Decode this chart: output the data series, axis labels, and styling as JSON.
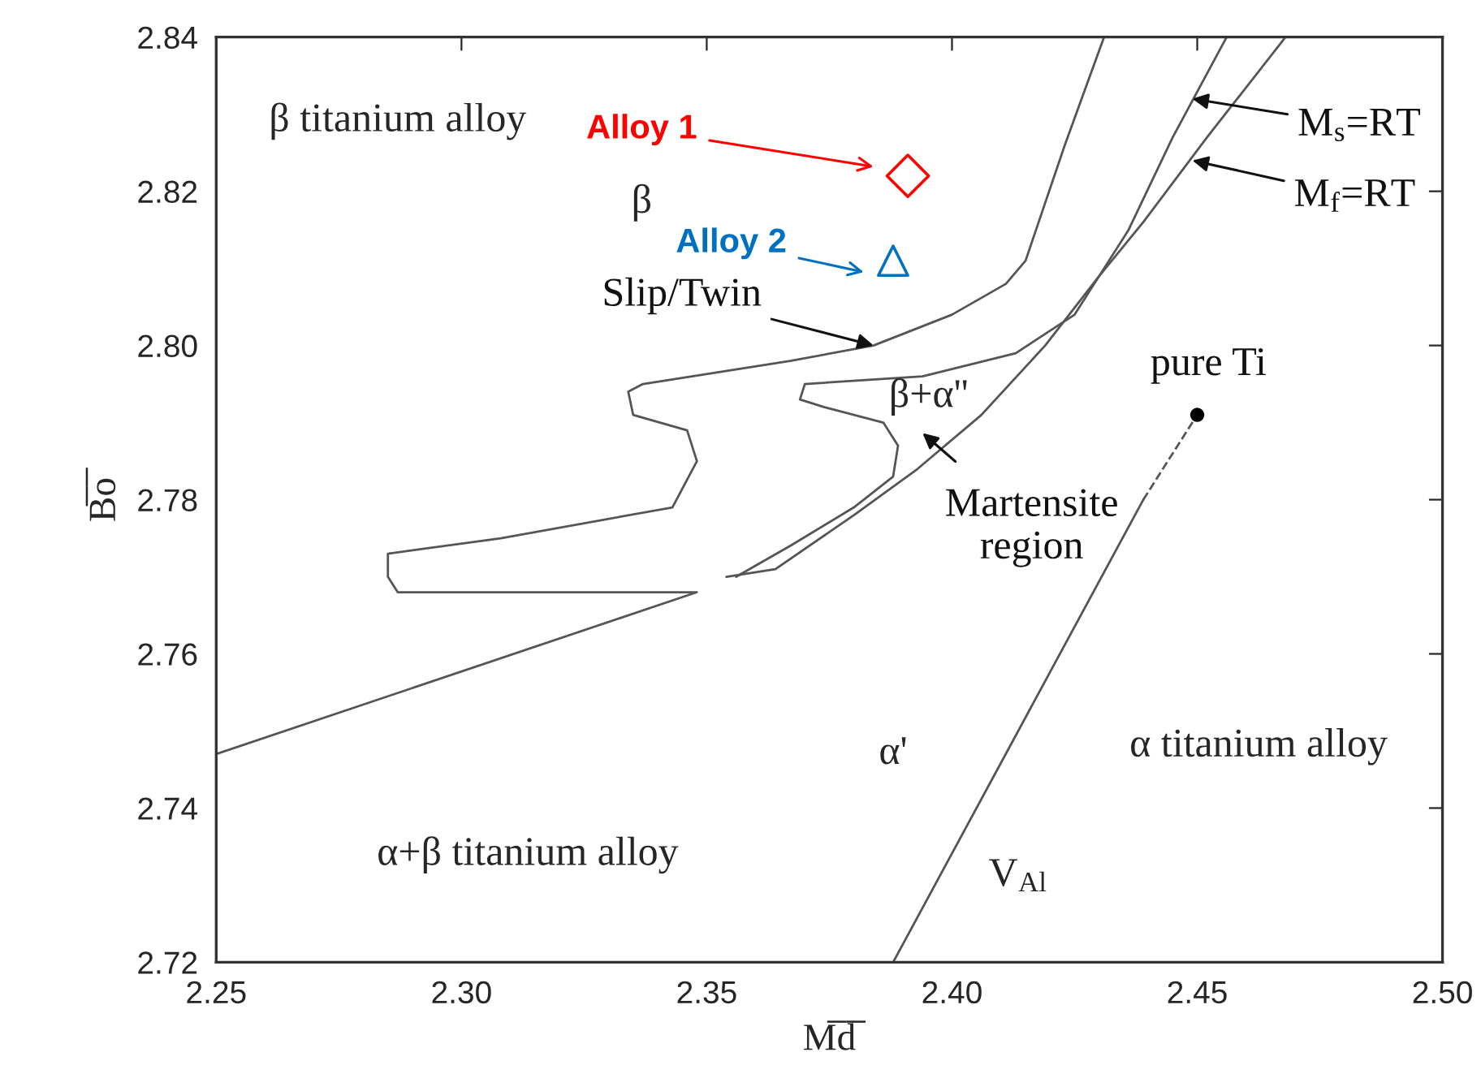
{
  "chart_data": {
    "type": "line",
    "xlabel": "M̅d̅",
    "ylabel": "B̅o̅",
    "xlim": [
      2.25,
      2.5
    ],
    "ylim": [
      2.72,
      2.84
    ],
    "xticks": [
      {
        "value": 2.25,
        "label": "2.25"
      },
      {
        "value": 2.3,
        "label": "2.30"
      },
      {
        "value": 2.35,
        "label": "2.35"
      },
      {
        "value": 2.4,
        "label": "2.40"
      },
      {
        "value": 2.45,
        "label": "2.45"
      },
      {
        "value": 2.5,
        "label": "2.50"
      }
    ],
    "yticks": [
      {
        "value": 2.72,
        "label": "2.72"
      },
      {
        "value": 2.74,
        "label": "2.74"
      },
      {
        "value": 2.76,
        "label": "2.76"
      },
      {
        "value": 2.78,
        "label": "2.78"
      },
      {
        "value": 2.8,
        "label": "2.80"
      },
      {
        "value": 2.82,
        "label": "2.82"
      },
      {
        "value": 2.84,
        "label": "2.84"
      }
    ],
    "grid": false,
    "legend": false,
    "series": [
      {
        "color": "#555555",
        "line_style": "solid",
        "x": [
          2.431,
          2.423,
          2.415,
          2.411,
          2.4,
          2.384,
          2.367,
          2.337,
          2.334,
          2.335,
          2.346,
          2.348,
          2.343,
          2.308,
          2.285,
          2.285,
          2.287,
          2.348,
          2.25
        ],
        "values": [
          2.84,
          2.826,
          2.811,
          2.808,
          2.804,
          2.8,
          2.798,
          2.795,
          2.794,
          2.791,
          2.789,
          2.785,
          2.779,
          2.775,
          2.773,
          2.77,
          2.768,
          2.768,
          2.747
        ]
      },
      {
        "color": "#555555",
        "line_style": "solid",
        "x": [
          2.456,
          2.445,
          2.436,
          2.43,
          2.425,
          2.413,
          2.394,
          2.37,
          2.369,
          2.374,
          2.386,
          2.389,
          2.388,
          2.38,
          2.367,
          2.356
        ],
        "values": [
          2.84,
          2.827,
          2.815,
          2.809,
          2.804,
          2.799,
          2.796,
          2.795,
          2.793,
          2.792,
          2.79,
          2.787,
          2.783,
          2.779,
          2.774,
          2.77
        ]
      },
      {
        "color": "#555555",
        "line_style": "solid",
        "x": [
          2.468,
          2.452,
          2.439,
          2.43,
          2.419,
          2.406,
          2.393,
          2.38,
          2.364,
          2.354
        ],
        "values": [
          2.84,
          2.827,
          2.816,
          2.809,
          2.8,
          2.791,
          2.784,
          2.778,
          2.771,
          2.77
        ]
      },
      {
        "color": "#555555",
        "line_style": "solid",
        "x": [
          2.388,
          2.439
        ],
        "values": [
          2.72,
          2.78
        ]
      },
      {
        "color": "#555555",
        "line_style": "dashed",
        "x": [
          2.439,
          2.45
        ],
        "values": [
          2.78,
          2.791
        ]
      },
      {
        "type": "scatter",
        "color": "#000000",
        "marker": "circle",
        "x": [
          2.45
        ],
        "values": [
          2.791
        ]
      },
      {
        "type": "scatter",
        "color": "#ff0000",
        "marker": "diamond",
        "x": [
          2.391
        ],
        "values": [
          2.822
        ]
      },
      {
        "type": "scatter",
        "color": "#0070c0",
        "marker": "triangle",
        "x": [
          2.388
        ],
        "values": [
          2.811
        ]
      }
    ],
    "annotations": [
      "β titanium alloy",
      "β",
      "Alloy 1",
      "Alloy 2",
      {
        "text": "Slip/Twin",
        "x": 2.384,
        "y": 2.8
      },
      "β+α''",
      "Martensite\nregion",
      {
        "text": "pure Ti",
        "x": 2.45,
        "y": 2.791
      },
      {
        "text": "M$_{s}$=RT",
        "x": 2.449,
        "y": 2.832
      },
      {
        "text": "M$_{f}$=RT",
        "x": 2.449,
        "y": 2.824
      },
      "α'",
      "α titanium alloy",
      "α+β titanium alloy",
      "V$_{Al}$"
    ]
  }
}
